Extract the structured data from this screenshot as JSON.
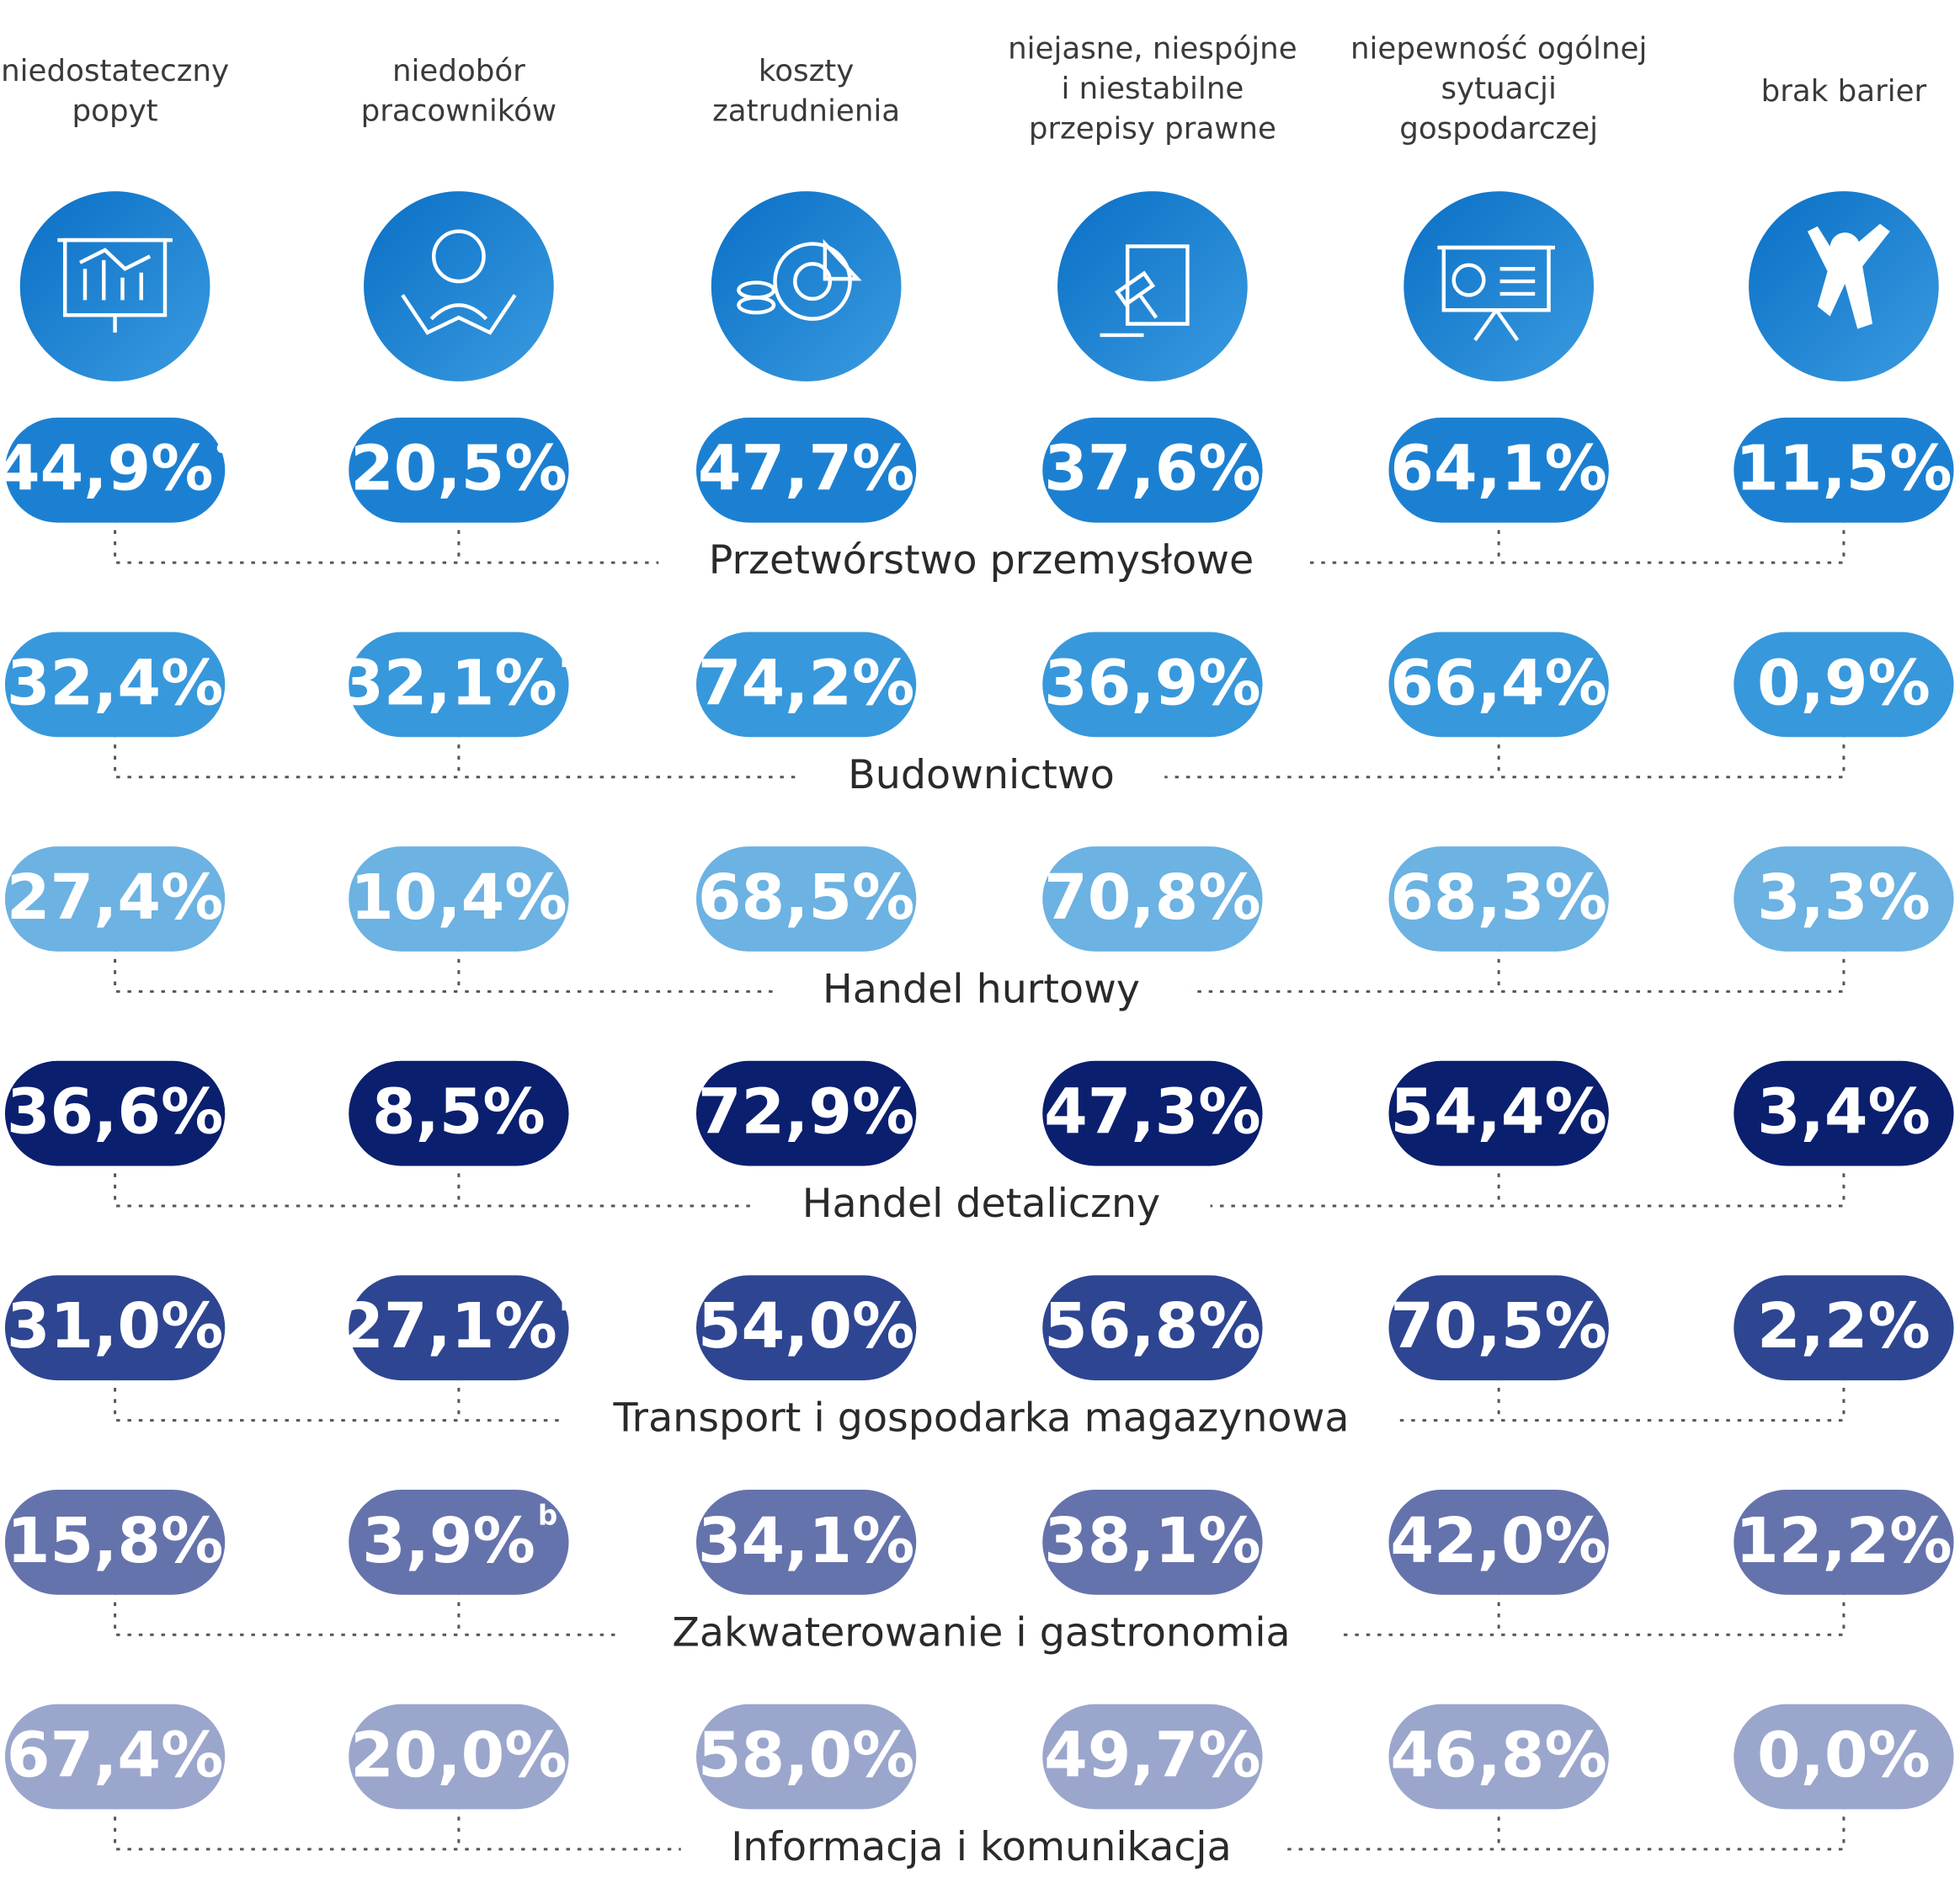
{
  "columns": [
    [
      "niedostateczny",
      "popyt"
    ],
    [
      "niedobór",
      "pracowników"
    ],
    [
      "koszty",
      "zatrudnienia"
    ],
    [
      "niejasne, niespójne",
      "i niestabilne",
      "przepisy prawne"
    ],
    [
      "niepewność ogólnej",
      "sytuacji",
      "gospodarczej"
    ],
    [
      "brak barier"
    ]
  ],
  "rows": [
    {
      "name": "Przetwórstwo przemysłowe",
      "color": "#1c80d2",
      "cells": [
        {
          "text": "44,9%",
          "note": "a"
        },
        "20,5%",
        "47,7%",
        "37,6%",
        "64,1%",
        "11,5%"
      ]
    },
    {
      "name": "Budownictwo",
      "color": "#3898dc",
      "cells": [
        "32,4%",
        {
          "text": "32,1%",
          "note": "b"
        },
        "74,2%",
        "36,9%",
        "66,4%",
        "0,9%"
      ]
    },
    {
      "name": "Handel hurtowy",
      "color": "#6cb2e2",
      "cells": [
        "27,4%",
        "10,4%",
        "68,5%",
        "70,8%",
        "68,3%",
        "3,3%"
      ]
    },
    {
      "name": "Handel detaliczny",
      "color": "#0b1f6f",
      "cells": [
        "36,6%",
        "8,5%",
        "72,9%",
        "47,3%",
        "54,4%",
        "3,4%"
      ]
    },
    {
      "name": "Transport i gospodarka magazynowa",
      "color": "#2e4592",
      "cells": [
        "31,0%",
        {
          "text": "27,1%",
          "note": "b"
        },
        "54,0%",
        "56,8%",
        "70,5%",
        "2,2%"
      ]
    },
    {
      "name": "Zakwaterowanie i gastronomia",
      "color": "#6573ac",
      "cells": [
        "15,8%",
        {
          "text": "3,9%",
          "note": "b"
        },
        "34,1%",
        "38,1%",
        "42,0%",
        "12,2%"
      ]
    },
    {
      "name": "Informacja i komunikacja",
      "color": "#9ba6cc",
      "cells": [
        "67,4%",
        "20,0%",
        "58,0%",
        "49,7%",
        "46,8%",
        "0,0%"
      ]
    }
  ]
}
